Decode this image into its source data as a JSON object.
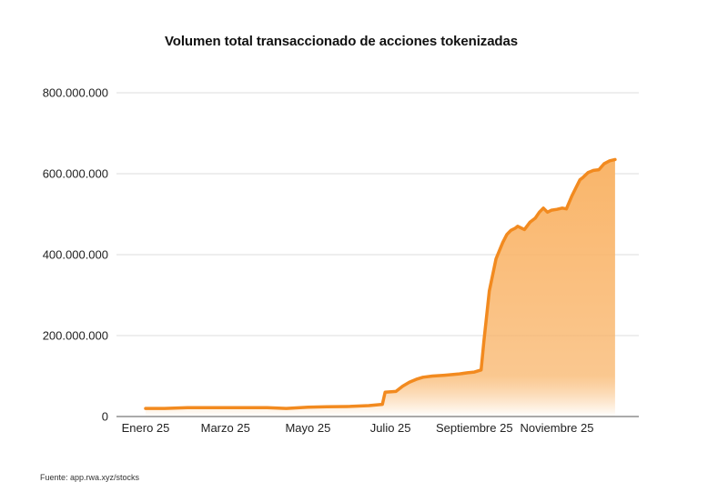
{
  "chart_data": {
    "type": "area",
    "title": "Volumen total transaccionado de acciones tokenizadas",
    "xlabel": "",
    "ylabel": "",
    "x_tick_labels": [
      "Enero 25",
      "Marzo 25",
      "Mayo 25",
      "Julio 25",
      "Septiembre 25",
      "Noviembre 25"
    ],
    "y_tick_labels": [
      "0",
      "200.000.000",
      "400.000.000",
      "600.000.000",
      "800.000.000"
    ],
    "y_ticks": [
      0,
      200000000,
      400000000,
      600000000,
      800000000
    ],
    "ylim": [
      0,
      800000000
    ],
    "xlim": [
      "2025-01-01",
      "2025-12-31"
    ],
    "grid": true,
    "legend": "none",
    "colors": {
      "line": "#f28a1f",
      "fill_top": "#f9b56a",
      "fill_bottom": "#ffffff"
    },
    "series": [
      {
        "x": [
          "2025-01-01",
          "2025-01-15",
          "2025-02-01",
          "2025-03-01",
          "2025-04-01",
          "2025-04-15",
          "2025-05-01",
          "2025-05-15",
          "2025-06-01",
          "2025-06-15",
          "2025-06-25",
          "2025-06-27",
          "2025-07-05",
          "2025-07-10",
          "2025-07-15",
          "2025-07-20",
          "2025-07-25",
          "2025-08-01",
          "2025-08-10",
          "2025-08-20",
          "2025-08-27",
          "2025-09-01",
          "2025-09-06",
          "2025-09-08",
          "2025-09-12",
          "2025-09-17",
          "2025-09-22",
          "2025-09-25",
          "2025-09-28",
          "2025-10-01",
          "2025-10-03",
          "2025-10-08",
          "2025-10-12",
          "2025-10-16",
          "2025-10-19",
          "2025-10-22",
          "2025-10-25",
          "2025-10-28",
          "2025-11-01",
          "2025-11-05",
          "2025-11-08",
          "2025-11-12",
          "2025-11-15",
          "2025-11-18",
          "2025-11-20",
          "2025-11-24",
          "2025-11-28",
          "2025-12-02",
          "2025-12-06",
          "2025-12-10",
          "2025-12-14"
        ],
        "values": [
          20000000,
          20000000,
          22000000,
          22000000,
          22000000,
          20000000,
          23000000,
          24000000,
          25000000,
          27000000,
          30000000,
          60000000,
          62000000,
          75000000,
          85000000,
          92000000,
          97000000,
          100000000,
          102000000,
          105000000,
          108000000,
          110000000,
          115000000,
          185000000,
          310000000,
          390000000,
          430000000,
          450000000,
          460000000,
          465000000,
          470000000,
          462000000,
          480000000,
          490000000,
          505000000,
          515000000,
          505000000,
          510000000,
          512000000,
          515000000,
          513000000,
          545000000,
          565000000,
          585000000,
          590000000,
          603000000,
          608000000,
          610000000,
          625000000,
          632000000,
          635000000
        ]
      }
    ]
  },
  "source": "Fuente: app.rwa.xyz/stocks"
}
